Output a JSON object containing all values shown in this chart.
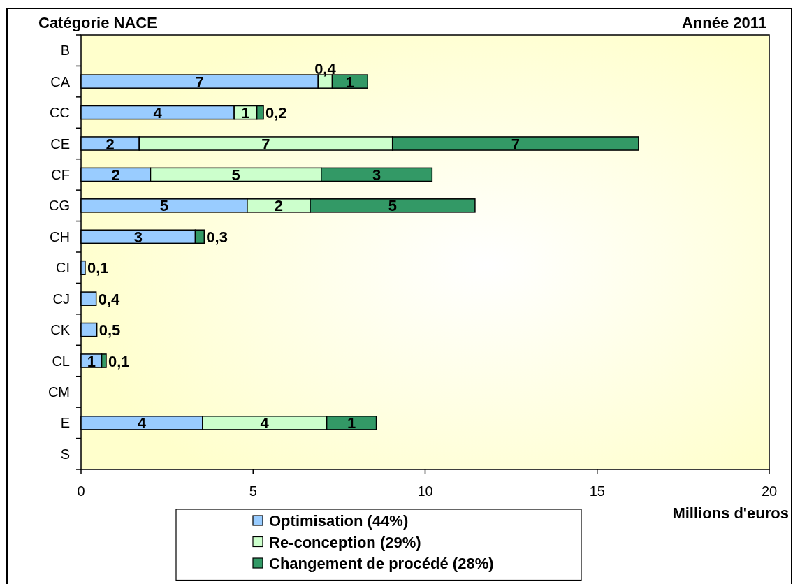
{
  "chart_data": {
    "type": "bar",
    "orientation": "horizontal",
    "stacked": true,
    "title": "Année 2011",
    "ylabel": "Catégorie NACE",
    "xlabel": "Millions d'euros",
    "categories": [
      "B",
      "CA",
      "CC",
      "CE",
      "CF",
      "CG",
      "CH",
      "CI",
      "CJ",
      "CK",
      "CL",
      "CM",
      "E",
      "S"
    ],
    "series": [
      {
        "name": "Optimisation (44%)",
        "color": "#99ccff",
        "values": [
          null,
          6.89,
          4.45,
          1.69,
          2.02,
          4.83,
          3.32,
          0.12,
          0.44,
          0.46,
          0.6,
          null,
          3.53,
          null
        ],
        "value_labels": [
          null,
          "7",
          "4",
          "2",
          "2",
          "5",
          "3",
          "0,1",
          "0,4",
          "0,5",
          "1",
          null,
          "4",
          null
        ]
      },
      {
        "name": "Re-conception (29%)",
        "color": "#ccffcc",
        "values": [
          null,
          0.41,
          0.66,
          7.36,
          4.96,
          1.83,
          null,
          null,
          null,
          null,
          null,
          null,
          3.61,
          null
        ],
        "value_labels": [
          null,
          "0,4",
          "1",
          "7",
          "5",
          "2",
          null,
          null,
          null,
          null,
          null,
          null,
          "4",
          null
        ]
      },
      {
        "name": "Changement de procédé (28%)",
        "color": "#339966",
        "values": [
          null,
          1.03,
          0.19,
          7.15,
          3.22,
          4.79,
          0.26,
          null,
          null,
          null,
          0.13,
          null,
          1.44,
          null
        ],
        "value_labels": [
          null,
          "1",
          "0,2",
          "7",
          "3",
          "5",
          "0,3",
          null,
          null,
          null,
          "0,1",
          null,
          "1",
          null
        ]
      }
    ],
    "xlim": [
      0,
      20
    ],
    "xticks": [
      0,
      5,
      10,
      15,
      20
    ],
    "legend": "bottom"
  }
}
